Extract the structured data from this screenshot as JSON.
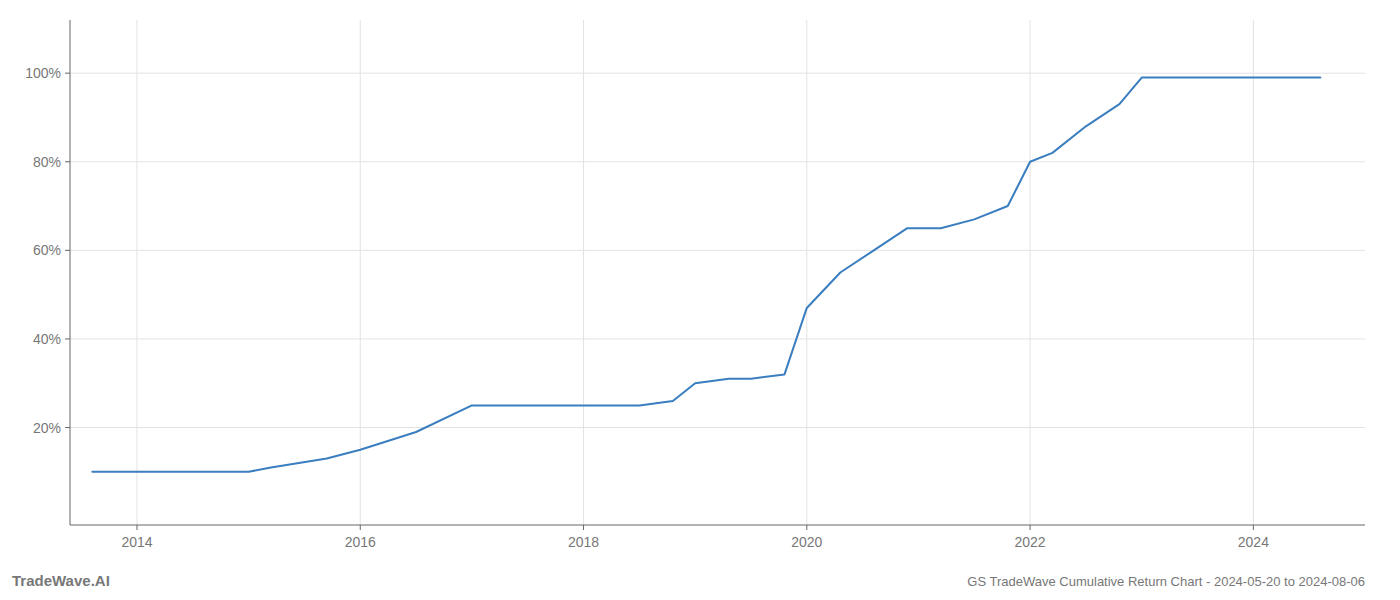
{
  "chart_data": {
    "type": "line",
    "title": "GS TradeWave Cumulative Return Chart - 2024-05-20 to 2024-08-06",
    "annotations": [
      "TradeWave.AI"
    ],
    "color": "#3a7ebf",
    "x": [
      2013.6,
      2014.0,
      2014.5,
      2015.0,
      2015.2,
      2015.7,
      2016.0,
      2016.5,
      2017.0,
      2017.3,
      2017.5,
      2017.8,
      2018.0,
      2018.3,
      2018.5,
      2018.8,
      2019.0,
      2019.3,
      2019.5,
      2019.8,
      2020.0,
      2020.3,
      2020.6,
      2020.9,
      2021.2,
      2021.5,
      2021.8,
      2022.0,
      2022.2,
      2022.5,
      2022.8,
      2023.0,
      2023.2,
      2023.5,
      2023.7,
      2024.0,
      2024.3,
      2024.6
    ],
    "values": [
      10,
      10,
      10,
      10,
      11,
      13,
      15,
      19,
      25,
      25,
      25,
      25,
      25,
      25,
      25,
      26,
      30,
      31,
      31,
      32,
      47,
      55,
      60,
      65,
      65,
      67,
      70,
      80,
      82,
      88,
      93,
      99,
      99,
      99,
      99,
      99,
      99,
      99
    ],
    "xlim": [
      2013.4,
      2025.0
    ],
    "ylim": [
      -2,
      112
    ],
    "xticks": [
      2014,
      2016,
      2018,
      2020,
      2022,
      2024
    ],
    "yticks": [
      {
        "value": 20,
        "label": "20%"
      },
      {
        "value": 40,
        "label": "40%"
      },
      {
        "value": 60,
        "label": "60%"
      },
      {
        "value": 80,
        "label": "80%"
      },
      {
        "value": 100,
        "label": "100%"
      }
    ],
    "grid": true
  }
}
